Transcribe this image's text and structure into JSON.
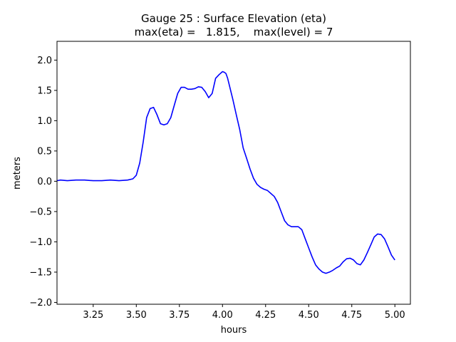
{
  "chart_data": {
    "type": "line",
    "title_line1": "Gauge 25 : Surface Elevation (eta)",
    "title_line2": "max(eta) =   1.815,    max(level) = 7",
    "xlabel": "hours",
    "ylabel": "meters",
    "xlim": [
      3.04,
      5.09
    ],
    "ylim": [
      -2.03,
      2.31
    ],
    "x_ticks": [
      3.25,
      3.5,
      3.75,
      4.0,
      4.25,
      4.5,
      4.75,
      5.0
    ],
    "x_tick_labels": [
      "3.25",
      "3.50",
      "3.75",
      "4.00",
      "4.25",
      "4.50",
      "4.75",
      "5.00"
    ],
    "y_ticks": [
      -2.0,
      -1.5,
      -1.0,
      -0.5,
      0.0,
      0.5,
      1.0,
      1.5,
      2.0
    ],
    "y_tick_labels": [
      "−2.0",
      "−1.5",
      "−1.0",
      "−0.5",
      "0.0",
      "0.5",
      "1.0",
      "1.5",
      "2.0"
    ],
    "line_color": "#0000ff",
    "series": [
      {
        "name": "eta",
        "x": [
          3.04,
          3.06,
          3.1,
          3.15,
          3.2,
          3.25,
          3.3,
          3.35,
          3.4,
          3.45,
          3.48,
          3.5,
          3.52,
          3.54,
          3.56,
          3.58,
          3.6,
          3.62,
          3.64,
          3.66,
          3.68,
          3.7,
          3.72,
          3.74,
          3.76,
          3.78,
          3.8,
          3.82,
          3.84,
          3.86,
          3.88,
          3.9,
          3.92,
          3.94,
          3.96,
          3.98,
          4.0,
          4.01,
          4.02,
          4.03,
          4.04,
          4.06,
          4.08,
          4.1,
          4.12,
          4.14,
          4.16,
          4.18,
          4.2,
          4.22,
          4.24,
          4.26,
          4.28,
          4.3,
          4.32,
          4.34,
          4.36,
          4.38,
          4.4,
          4.42,
          4.44,
          4.46,
          4.48,
          4.5,
          4.52,
          4.54,
          4.56,
          4.58,
          4.6,
          4.62,
          4.64,
          4.66,
          4.68,
          4.7,
          4.72,
          4.74,
          4.76,
          4.78,
          4.8,
          4.82,
          4.84,
          4.86,
          4.88,
          4.9,
          4.92,
          4.94,
          4.96,
          4.98,
          5.0
        ],
        "y": [
          0.01,
          0.02,
          0.01,
          0.02,
          0.02,
          0.01,
          0.01,
          0.02,
          0.01,
          0.02,
          0.04,
          0.1,
          0.3,
          0.65,
          1.05,
          1.2,
          1.22,
          1.1,
          0.95,
          0.93,
          0.95,
          1.05,
          1.25,
          1.45,
          1.55,
          1.55,
          1.52,
          1.52,
          1.53,
          1.56,
          1.55,
          1.48,
          1.38,
          1.45,
          1.7,
          1.76,
          1.81,
          1.8,
          1.78,
          1.7,
          1.58,
          1.35,
          1.1,
          0.85,
          0.55,
          0.38,
          0.2,
          0.05,
          -0.05,
          -0.1,
          -0.13,
          -0.15,
          -0.2,
          -0.25,
          -0.35,
          -0.5,
          -0.65,
          -0.72,
          -0.75,
          -0.75,
          -0.75,
          -0.8,
          -0.95,
          -1.1,
          -1.25,
          -1.38,
          -1.45,
          -1.5,
          -1.52,
          -1.5,
          -1.47,
          -1.43,
          -1.4,
          -1.33,
          -1.28,
          -1.27,
          -1.3,
          -1.36,
          -1.38,
          -1.3,
          -1.18,
          -1.05,
          -0.92,
          -0.87,
          -0.88,
          -0.95,
          -1.08,
          -1.22,
          -1.3
        ]
      }
    ]
  }
}
